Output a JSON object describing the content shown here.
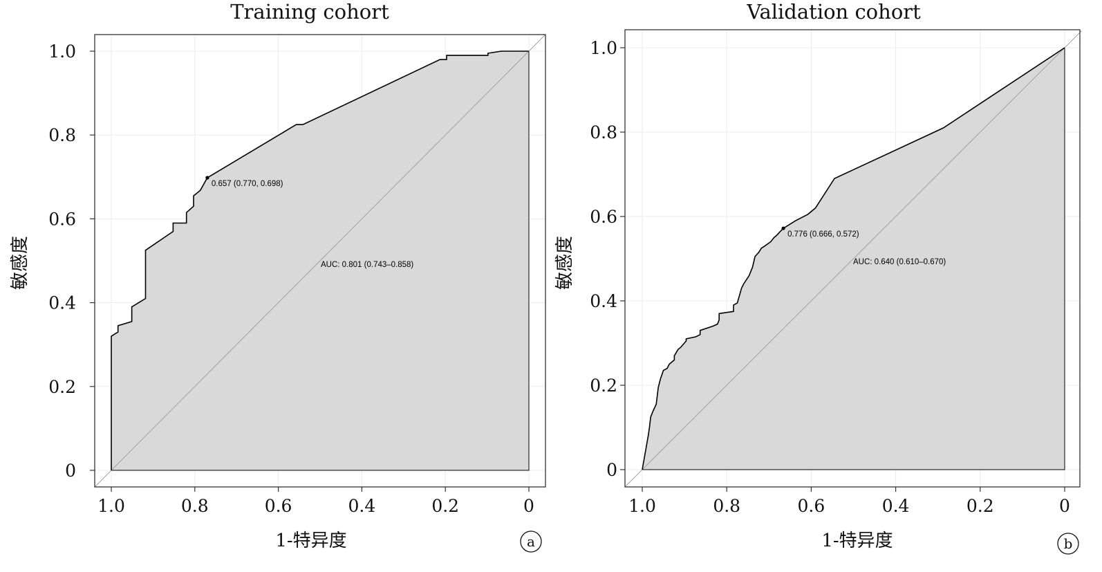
{
  "figure": {
    "panels": [
      {
        "title": "Training cohort",
        "xlabel": "1-特异度",
        "ylabel": "敏感度",
        "panel_label": "a",
        "x_tick_labels": [
          "1.0",
          "0.8",
          "0.6",
          "0.4",
          "0.2",
          "0"
        ],
        "y_tick_labels": [
          "0",
          "0.2",
          "0.4",
          "0.6",
          "0.8",
          "1.0"
        ],
        "auc_text": "AUC: 0.801 (0.743–0.858)",
        "threshold_text": "0.657 (0.770, 0.698)"
      },
      {
        "title": "Validation cohort",
        "xlabel": "1-特异度",
        "ylabel": "敏感度",
        "panel_label": "b",
        "x_tick_labels": [
          "1.0",
          "0.8",
          "0.6",
          "0.4",
          "0.2",
          "0"
        ],
        "y_tick_labels": [
          "0",
          "0.2",
          "0.4",
          "0.6",
          "0.8",
          "1.0"
        ],
        "auc_text": "AUC: 0.640 (0.610–0.670)",
        "threshold_text": "0.776 (0.666, 0.572)"
      }
    ]
  },
  "colors": {
    "curve": "#000000",
    "fill": "#d9d9d9",
    "diagonal": "#a0a0a0",
    "grid": "#ebebeb",
    "frame": "#333333"
  },
  "chart_data": [
    {
      "type": "line",
      "title": "Training cohort",
      "xlabel": "1-特异度",
      "ylabel": "敏感度",
      "x_axis": "specificity (reversed)",
      "xlim": [
        1.0,
        0.0
      ],
      "ylim": [
        0,
        1.0
      ],
      "grid": true,
      "auc": 0.801,
      "auc_ci": [
        0.743,
        0.858
      ],
      "threshold": {
        "value": 0.657,
        "specificity": 0.77,
        "sensitivity": 0.698
      },
      "series": [
        {
          "x": [
            1.0,
            1.0,
            0.984,
            0.984,
            0.951,
            0.951,
            0.918,
            0.918,
            0.852,
            0.852,
            0.82,
            0.82,
            0.803,
            0.803,
            0.787,
            0.77,
            0.557,
            0.541,
            0.213,
            0.197,
            0.197,
            0.098,
            0.098,
            0.066,
            0.0
          ],
          "y": [
            0.0,
            0.32,
            0.33,
            0.345,
            0.355,
            0.39,
            0.41,
            0.525,
            0.57,
            0.59,
            0.59,
            0.615,
            0.63,
            0.655,
            0.668,
            0.698,
            0.825,
            0.825,
            0.98,
            0.98,
            0.99,
            0.99,
            0.995,
            1.0,
            1.0
          ]
        }
      ]
    },
    {
      "type": "line",
      "title": "Validation cohort",
      "xlabel": "1-特异度",
      "ylabel": "敏感度",
      "x_axis": "specificity (reversed)",
      "xlim": [
        1.0,
        0.0
      ],
      "ylim": [
        0,
        1.0
      ],
      "grid": true,
      "auc": 0.64,
      "auc_ci": [
        0.61,
        0.67
      ],
      "threshold": {
        "value": 0.776,
        "specificity": 0.666,
        "sensitivity": 0.572
      },
      "series": [
        {
          "x": [
            1.0,
            0.993,
            0.986,
            0.983,
            0.98,
            0.974,
            0.967,
            0.962,
            0.957,
            0.95,
            0.941,
            0.936,
            0.924,
            0.924,
            0.915,
            0.909,
            0.896,
            0.896,
            0.873,
            0.863,
            0.863,
            0.833,
            0.822,
            0.818,
            0.818,
            0.784,
            0.784,
            0.775,
            0.765,
            0.76,
            0.747,
            0.739,
            0.733,
            0.724,
            0.718,
            0.71,
            0.696,
            0.688,
            0.682,
            0.673,
            0.666,
            0.637,
            0.608,
            0.59,
            0.545,
            0.287,
            0.0
          ],
          "y": [
            0.0,
            0.04,
            0.08,
            0.1,
            0.125,
            0.14,
            0.155,
            0.195,
            0.215,
            0.235,
            0.24,
            0.25,
            0.26,
            0.27,
            0.285,
            0.29,
            0.305,
            0.31,
            0.315,
            0.32,
            0.33,
            0.34,
            0.345,
            0.355,
            0.37,
            0.375,
            0.39,
            0.395,
            0.43,
            0.44,
            0.46,
            0.48,
            0.505,
            0.515,
            0.525,
            0.53,
            0.54,
            0.55,
            0.555,
            0.565,
            0.572,
            0.59,
            0.605,
            0.62,
            0.69,
            0.81,
            1.0
          ]
        }
      ]
    }
  ]
}
